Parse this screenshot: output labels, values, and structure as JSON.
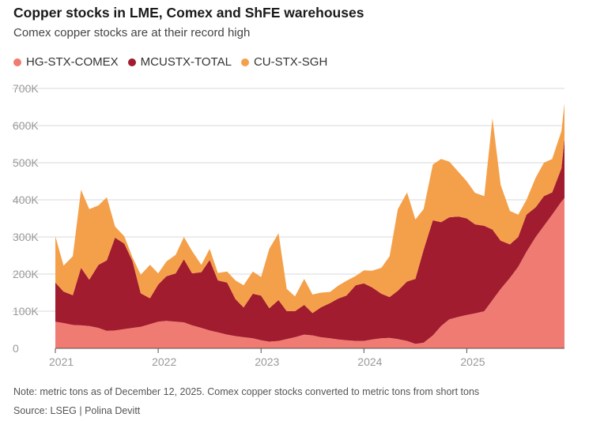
{
  "header": {
    "title": "Copper stocks in LME, Comex and ShFE warehouses",
    "subtitle": "Comex copper stocks are at their record high"
  },
  "legend": [
    {
      "label": "HG-STX-COMEX",
      "color": "#f07b72"
    },
    {
      "label": "MCUSTX-TOTAL",
      "color": "#a01c2e"
    },
    {
      "label": "CU-STX-SGH",
      "color": "#f4a04a"
    }
  ],
  "footer": {
    "note": "Note: metric tons as of December 12, 2025. Comex copper stocks converted to metric tons from short tons",
    "source": "Source: LSEG | Polina Devitt"
  },
  "chart_data": {
    "type": "area",
    "stacked": true,
    "title": "Copper stocks in LME, Comex and ShFE warehouses",
    "subtitle": "Comex copper stocks are at their record high",
    "xlabel": "",
    "ylabel": "",
    "xlim": [
      2021.0,
      2025.95
    ],
    "ylim": [
      0,
      700000
    ],
    "y_ticks": [
      0,
      100000,
      200000,
      300000,
      400000,
      500000,
      600000,
      700000
    ],
    "y_tick_labels": [
      "0",
      "100K",
      "200K",
      "300K",
      "400K",
      "500K",
      "600K",
      "700K"
    ],
    "x_ticks": [
      2021,
      2022,
      2023,
      2024,
      2025
    ],
    "x_tick_labels": [
      "2021",
      "2022",
      "2023",
      "2024",
      "2025"
    ],
    "grid": "horizontal",
    "legend_position": "top-left",
    "x": [
      2021.0,
      2021.08,
      2021.17,
      2021.25,
      2021.33,
      2021.42,
      2021.5,
      2021.58,
      2021.67,
      2021.75,
      2021.83,
      2021.92,
      2022.0,
      2022.08,
      2022.17,
      2022.25,
      2022.33,
      2022.42,
      2022.5,
      2022.58,
      2022.67,
      2022.75,
      2022.83,
      2022.92,
      2023.0,
      2023.08,
      2023.17,
      2023.25,
      2023.33,
      2023.42,
      2023.5,
      2023.58,
      2023.67,
      2023.75,
      2023.83,
      2023.92,
      2024.0,
      2024.08,
      2024.17,
      2024.25,
      2024.33,
      2024.42,
      2024.5,
      2024.58,
      2024.67,
      2024.75,
      2024.83,
      2024.92,
      2025.0,
      2025.08,
      2025.17,
      2025.25,
      2025.33,
      2025.42,
      2025.5,
      2025.58,
      2025.67,
      2025.75,
      2025.83,
      2025.92,
      2025.95
    ],
    "series": [
      {
        "name": "HG-STX-COMEX",
        "values": [
          72000,
          68000,
          63000,
          62000,
          60000,
          55000,
          47000,
          48000,
          52000,
          55000,
          58000,
          65000,
          72000,
          74000,
          72000,
          70000,
          62000,
          55000,
          48000,
          43000,
          37000,
          33000,
          30000,
          27000,
          22000,
          18000,
          20000,
          25000,
          30000,
          37000,
          35000,
          30000,
          27000,
          24000,
          22000,
          20000,
          20000,
          24000,
          27000,
          28000,
          25000,
          20000,
          12000,
          15000,
          35000,
          60000,
          78000,
          85000,
          90000,
          94000,
          100000,
          130000,
          160000,
          190000,
          220000,
          260000,
          300000,
          330000,
          360000,
          395000,
          405000
        ]
      },
      {
        "name": "MCUSTX-TOTAL",
        "values": [
          105000,
          85000,
          80000,
          155000,
          125000,
          170000,
          190000,
          250000,
          230000,
          180000,
          90000,
          70000,
          100000,
          120000,
          130000,
          170000,
          140000,
          150000,
          190000,
          140000,
          140000,
          100000,
          80000,
          120000,
          120000,
          90000,
          110000,
          75000,
          70000,
          80000,
          60000,
          80000,
          95000,
          110000,
          120000,
          150000,
          155000,
          140000,
          120000,
          110000,
          130000,
          160000,
          175000,
          250000,
          310000,
          280000,
          275000,
          270000,
          260000,
          240000,
          230000,
          190000,
          130000,
          90000,
          80000,
          100000,
          80000,
          80000,
          60000,
          90000,
          160000
        ]
      },
      {
        "name": "CU-STX-SGH",
        "values": [
          125000,
          70000,
          105000,
          210000,
          190000,
          160000,
          170000,
          30000,
          20000,
          10000,
          50000,
          90000,
          30000,
          40000,
          50000,
          60000,
          60000,
          20000,
          30000,
          20000,
          30000,
          50000,
          60000,
          60000,
          50000,
          160000,
          180000,
          60000,
          40000,
          70000,
          50000,
          40000,
          30000,
          35000,
          40000,
          25000,
          35000,
          45000,
          70000,
          110000,
          220000,
          240000,
          160000,
          110000,
          150000,
          170000,
          150000,
          120000,
          100000,
          85000,
          80000,
          300000,
          150000,
          90000,
          60000,
          40000,
          80000,
          90000,
          90000,
          100000,
          95000
        ]
      }
    ]
  },
  "axis_colors": {
    "grid": "#d9d9d9",
    "tick_text": "#999999",
    "baseline": "#555555"
  }
}
